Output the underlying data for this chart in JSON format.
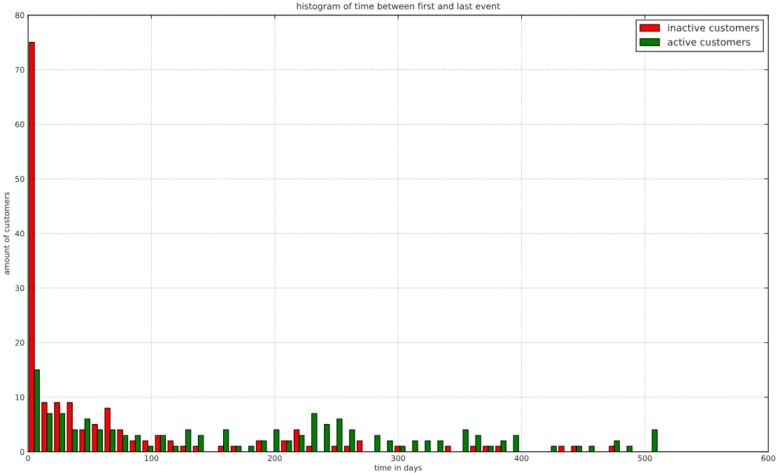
{
  "chart_data": {
    "type": "histogram",
    "title": "histogram of time between first and last event",
    "xlabel": "time in days",
    "ylabel": "amount of customers",
    "bins": [
      0,
      10.2,
      20.4,
      30.7,
      40.9,
      51.1,
      61.3,
      71.5,
      81.8,
      92,
      102.2,
      112.4,
      122.6,
      132.9,
      143.1,
      153.3,
      163.5,
      173.7,
      184,
      194.2,
      204.4,
      214.6,
      224.8,
      235.1,
      245.3,
      255.5,
      265.7,
      275.9,
      286.2,
      296.4,
      306.6,
      316.8,
      327,
      337.3,
      347.5,
      357.7,
      367.9,
      378.1,
      388.4,
      398.6,
      408.8,
      419,
      429.2,
      439.5,
      449.7,
      459.9,
      470.1,
      480.3,
      490.6,
      500.8,
      511
    ],
    "series": [
      {
        "name": "inactive customers",
        "color": "#ff0000",
        "values": [
          75,
          9,
          9,
          9,
          4,
          5,
          8,
          4,
          2,
          2,
          3,
          2,
          1,
          1,
          0,
          1,
          1,
          0,
          2,
          0,
          2,
          4,
          1,
          0,
          1,
          1,
          2,
          0,
          0,
          1,
          0,
          0,
          0,
          1,
          0,
          1,
          1,
          1,
          0,
          0,
          0,
          0,
          1,
          1,
          0,
          0,
          1,
          0,
          0,
          0
        ]
      },
      {
        "name": "active customers",
        "color": "#008000",
        "values": [
          15,
          7,
          7,
          4,
          6,
          4,
          4,
          3,
          3,
          1,
          3,
          1,
          4,
          3,
          0,
          4,
          1,
          1,
          2,
          4,
          2,
          3,
          7,
          5,
          6,
          4,
          0,
          3,
          2,
          1,
          2,
          2,
          2,
          0,
          4,
          3,
          1,
          2,
          3,
          0,
          0,
          1,
          0,
          1,
          1,
          0,
          2,
          1,
          0,
          4
        ]
      }
    ],
    "xlim": [
      0,
      600
    ],
    "xticks": [
      0,
      100,
      200,
      300,
      400,
      500,
      600
    ],
    "ylim": [
      0,
      80
    ],
    "yticks": [
      0,
      10,
      20,
      30,
      40,
      50,
      60,
      70,
      80
    ],
    "grid": true,
    "legend": "top right"
  }
}
